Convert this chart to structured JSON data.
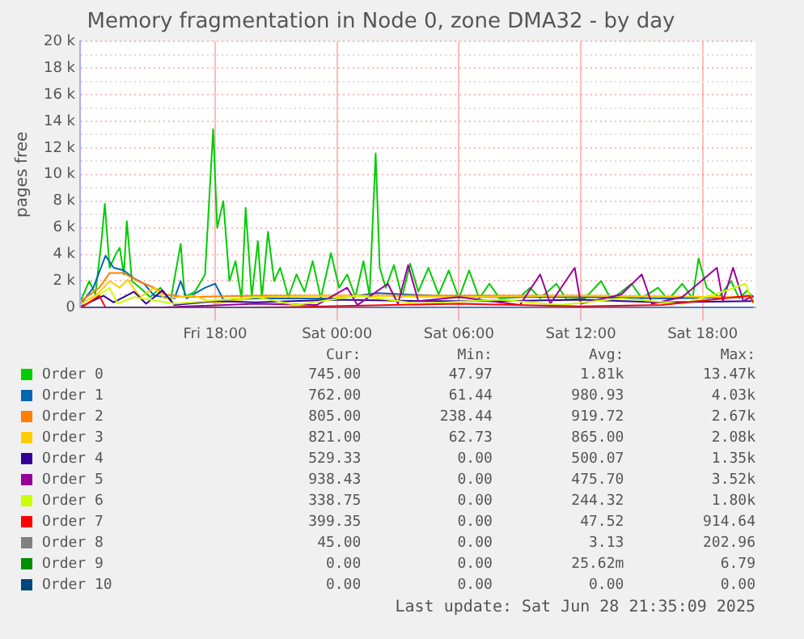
{
  "chart_data": {
    "type": "line",
    "title": "Memory fragmentation in Node 0, zone DMA32 - by day",
    "ylabel": "pages free",
    "xlim": [
      "2025-06-27T11:21",
      "2025-06-28T20:36"
    ],
    "xticks": [
      {
        "value": "2025-06-27T18:00",
        "label": "Fri 18:00"
      },
      {
        "value": "2025-06-28T00:00",
        "label": "Sat 00:00"
      },
      {
        "value": "2025-06-28T06:00",
        "label": "Sat 06:00"
      },
      {
        "value": "2025-06-28T12:00",
        "label": "Sat 12:00"
      },
      {
        "value": "2025-06-28T18:00",
        "label": "Sat 18:00"
      }
    ],
    "ylim": [
      0,
      20000
    ],
    "yticks": [
      {
        "value": 0,
        "label": "0"
      },
      {
        "value": 1000,
        "label": null
      },
      {
        "value": 2000,
        "label": "2 k"
      },
      {
        "value": 3000,
        "label": null
      },
      {
        "value": 4000,
        "label": "4 k"
      },
      {
        "value": 5000,
        "label": null
      },
      {
        "value": 6000,
        "label": "6 k"
      },
      {
        "value": 7000,
        "label": null
      },
      {
        "value": 8000,
        "label": "8 k"
      },
      {
        "value": 9000,
        "label": null
      },
      {
        "value": 10000,
        "label": "10 k"
      },
      {
        "value": 11000,
        "label": null
      },
      {
        "value": 12000,
        "label": "12 k"
      },
      {
        "value": 13000,
        "label": null
      },
      {
        "value": 14000,
        "label": "14 k"
      },
      {
        "value": 15000,
        "label": null
      },
      {
        "value": 16000,
        "label": "16 k"
      },
      {
        "value": 17000,
        "label": null
      },
      {
        "value": 18000,
        "label": "18 k"
      },
      {
        "value": 19000,
        "label": null
      },
      {
        "value": 20000,
        "label": "20 k"
      }
    ],
    "grid": true,
    "legend": "bottom",
    "series": [
      {
        "name": "Order 0",
        "color": "#00cc00",
        "x": [
          "2025-06-27T11:24",
          "2025-06-27T11:48",
          "2025-06-27T12:06",
          "2025-06-27T12:24",
          "2025-06-27T12:34",
          "2025-06-27T12:48",
          "2025-06-27T13:06",
          "2025-06-27T13:18",
          "2025-06-27T13:30",
          "2025-06-27T13:39",
          "2025-06-27T13:54",
          "2025-06-27T14:18",
          "2025-06-27T14:48",
          "2025-06-27T15:18",
          "2025-06-27T15:48",
          "2025-06-27T16:18",
          "2025-06-27T16:30",
          "2025-06-27T17:00",
          "2025-06-27T17:30",
          "2025-06-27T17:54",
          "2025-06-27T18:06",
          "2025-06-27T18:24",
          "2025-06-27T18:42",
          "2025-06-27T19:00",
          "2025-06-27T19:18",
          "2025-06-27T19:30",
          "2025-06-27T19:48",
          "2025-06-27T20:06",
          "2025-06-27T20:18",
          "2025-06-27T20:36",
          "2025-06-27T20:54",
          "2025-06-27T21:12",
          "2025-06-27T21:36",
          "2025-06-27T22:00",
          "2025-06-27T22:24",
          "2025-06-27T22:48",
          "2025-06-27T23:12",
          "2025-06-27T23:42",
          "2025-06-28T00:06",
          "2025-06-28T00:30",
          "2025-06-28T00:54",
          "2025-06-28T01:18",
          "2025-06-28T01:36",
          "2025-06-28T01:54",
          "2025-06-28T02:06",
          "2025-06-28T02:24",
          "2025-06-28T02:48",
          "2025-06-28T03:12",
          "2025-06-28T03:36",
          "2025-06-28T04:00",
          "2025-06-28T04:30",
          "2025-06-28T05:00",
          "2025-06-28T05:30",
          "2025-06-28T06:00",
          "2025-06-28T06:30",
          "2025-06-28T07:00",
          "2025-06-28T07:30",
          "2025-06-28T08:00",
          "2025-06-28T09:00",
          "2025-06-28T09:30",
          "2025-06-28T10:00",
          "2025-06-28T10:48",
          "2025-06-28T11:18",
          "2025-06-28T12:12",
          "2025-06-28T13:00",
          "2025-06-28T13:30",
          "2025-06-28T14:30",
          "2025-06-28T15:00",
          "2025-06-28T15:48",
          "2025-06-28T16:18",
          "2025-06-28T17:00",
          "2025-06-28T17:30",
          "2025-06-28T17:48",
          "2025-06-28T18:12",
          "2025-06-28T18:48",
          "2025-06-28T19:24",
          "2025-06-28T19:48",
          "2025-06-28T20:12",
          "2025-06-28T20:30"
        ],
        "values": [
          600,
          2000,
          1000,
          5000,
          7800,
          3000,
          4000,
          4500,
          2500,
          6500,
          2000,
          1500,
          800,
          1500,
          500,
          4800,
          800,
          1200,
          2500,
          13400,
          6000,
          8000,
          2000,
          3500,
          600,
          7500,
          800,
          5000,
          700,
          5700,
          2000,
          3000,
          800,
          2500,
          1200,
          3500,
          700,
          4100,
          1500,
          2500,
          800,
          3500,
          900,
          11600,
          3000,
          1500,
          3200,
          800,
          3300,
          1200,
          3000,
          1000,
          2800,
          700,
          2800,
          700,
          1800,
          700,
          800,
          1500,
          700,
          1800,
          600,
          700,
          2000,
          600,
          1800,
          700,
          1500,
          600,
          1800,
          700,
          3700,
          1500,
          800,
          2000,
          700,
          1300,
          700
        ]
      },
      {
        "name": "Order 1",
        "color": "#0066b3",
        "x": [
          "2025-06-27T11:24",
          "2025-06-27T12:00",
          "2025-06-27T12:36",
          "2025-06-27T13:00",
          "2025-06-27T13:30",
          "2025-06-27T14:00",
          "2025-06-27T14:30",
          "2025-06-27T15:00",
          "2025-06-27T16:00",
          "2025-06-27T16:18",
          "2025-06-27T16:36",
          "2025-06-27T17:30",
          "2025-06-27T18:00",
          "2025-06-27T18:24",
          "2025-06-27T20:00",
          "2025-06-28T00:00",
          "2025-06-28T02:00",
          "2025-06-28T06:00",
          "2025-06-28T12:00",
          "2025-06-28T16:00",
          "2025-06-28T20:30"
        ],
        "values": [
          300,
          1500,
          3900,
          3000,
          2800,
          2200,
          1800,
          900,
          700,
          2000,
          700,
          1500,
          1800,
          600,
          700,
          700,
          1100,
          800,
          800,
          700,
          800
        ]
      },
      {
        "name": "Order 2",
        "color": "#ff8000",
        "x": [
          "2025-06-27T11:24",
          "2025-06-27T12:18",
          "2025-06-27T12:48",
          "2025-06-27T13:30",
          "2025-06-27T14:12",
          "2025-06-27T15:00",
          "2025-06-27T15:30",
          "2025-06-27T16:30",
          "2025-06-27T20:00",
          "2025-06-28T04:00",
          "2025-06-28T12:00",
          "2025-06-28T18:00",
          "2025-06-28T20:30"
        ],
        "values": [
          500,
          1500,
          2600,
          2600,
          2000,
          1500,
          1000,
          800,
          900,
          900,
          900,
          800,
          800
        ]
      },
      {
        "name": "Order 3",
        "color": "#ffcc00",
        "x": [
          "2025-06-27T11:24",
          "2025-06-27T12:12",
          "2025-06-27T12:48",
          "2025-06-27T13:18",
          "2025-06-27T13:42",
          "2025-06-27T14:18",
          "2025-06-27T15:00",
          "2025-06-27T15:30",
          "2025-06-27T17:00",
          "2025-06-27T18:00",
          "2025-06-27T20:00",
          "2025-06-28T00:00",
          "2025-06-28T06:00",
          "2025-06-28T12:00",
          "2025-06-28T20:30"
        ],
        "values": [
          300,
          1000,
          2000,
          1500,
          2100,
          800,
          1500,
          700,
          900,
          300,
          800,
          900,
          800,
          900,
          800
        ]
      },
      {
        "name": "Order 4",
        "color": "#330099",
        "x": [
          "2025-06-27T11:24",
          "2025-06-27T12:30",
          "2025-06-27T13:00",
          "2025-06-27T14:00",
          "2025-06-27T14:36",
          "2025-06-27T15:24",
          "2025-06-27T16:00",
          "2025-06-27T18:00",
          "2025-06-27T20:00",
          "2025-06-28T00:00",
          "2025-06-28T04:00",
          "2025-06-28T08:00",
          "2025-06-28T12:00",
          "2025-06-28T16:00",
          "2025-06-28T20:30"
        ],
        "values": [
          100,
          900,
          400,
          1200,
          300,
          1300,
          200,
          500,
          400,
          600,
          500,
          500,
          600,
          400,
          500
        ]
      },
      {
        "name": "Order 5",
        "color": "#990099",
        "x": [
          "2025-06-27T11:24",
          "2025-06-27T15:00",
          "2025-06-27T20:00",
          "2025-06-27T23:00",
          "2025-06-28T00:30",
          "2025-06-28T01:00",
          "2025-06-28T02:30",
          "2025-06-28T03:00",
          "2025-06-28T03:30",
          "2025-06-28T04:00",
          "2025-06-28T06:00",
          "2025-06-28T09:00",
          "2025-06-28T10:00",
          "2025-06-28T10:30",
          "2025-06-28T11:42",
          "2025-06-28T12:00",
          "2025-06-28T14:00",
          "2025-06-28T15:00",
          "2025-06-28T15:30",
          "2025-06-28T17:00",
          "2025-06-28T18:42",
          "2025-06-28T19:00",
          "2025-06-28T19:30",
          "2025-06-28T20:00",
          "2025-06-28T20:30"
        ],
        "values": [
          0,
          0,
          300,
          200,
          1500,
          200,
          1800,
          300,
          3200,
          500,
          800,
          200,
          2500,
          300,
          3000,
          300,
          1000,
          2500,
          300,
          800,
          3000,
          500,
          3000,
          500,
          900
        ]
      },
      {
        "name": "Order 6",
        "color": "#ccff00",
        "x": [
          "2025-06-27T11:24",
          "2025-06-27T12:48",
          "2025-06-27T13:12",
          "2025-06-27T14:00",
          "2025-06-27T16:00",
          "2025-06-27T20:00",
          "2025-06-27T22:00",
          "2025-06-28T01:00",
          "2025-06-28T04:00",
          "2025-06-28T08:00",
          "2025-06-28T11:00",
          "2025-06-28T14:00",
          "2025-06-28T17:00",
          "2025-06-28T19:00",
          "2025-06-28T20:06",
          "2025-06-28T20:30"
        ],
        "values": [
          0,
          1500,
          300,
          800,
          300,
          800,
          200,
          900,
          300,
          600,
          200,
          700,
          300,
          1200,
          1800,
          300
        ]
      },
      {
        "name": "Order 7",
        "color": "#ff0000",
        "x": [
          "2025-06-27T11:24",
          "2025-06-27T12:18",
          "2025-06-27T12:36",
          "2025-06-27T20:00",
          "2025-06-28T06:00",
          "2025-06-28T12:00",
          "2025-06-28T16:00",
          "2025-06-28T20:18",
          "2025-06-28T20:30"
        ],
        "values": [
          0,
          900,
          0,
          0,
          300,
          100,
          200,
          900,
          400
        ]
      },
      {
        "name": "Order 8",
        "color": "#808080"
      },
      {
        "name": "Order 9",
        "color": "#008f00"
      },
      {
        "name": "Order 10",
        "color": "#00487d",
        "x": [
          "2025-06-27T11:24",
          "2025-06-28T20:30"
        ],
        "values": [
          0,
          0
        ]
      }
    ],
    "annotations": [
      "Cur:",
      "Min:",
      "Avg:",
      "Max:",
      "745.00",
      "47.97",
      "1.81k",
      "13.47k",
      "762.00",
      "61.44",
      "980.93",
      "4.03k",
      "805.00",
      "238.44",
      "919.72",
      "2.67k",
      "821.00",
      "62.73",
      "865.00",
      "2.08k",
      "529.33",
      "0.00",
      "500.07",
      "1.35k",
      "938.43",
      "0.00",
      "475.70",
      "3.52k",
      "338.75",
      "0.00",
      "244.32",
      "1.80k",
      "399.35",
      "0.00",
      "47.52",
      "914.64",
      "45.00",
      "0.00",
      "3.13",
      "202.96",
      "0.00",
      "0.00",
      "25.62m",
      "6.79",
      "0.00",
      "0.00",
      "0.00",
      "0.00",
      "Last update: Sat Jun 28 21:35:09 2025"
    ]
  }
}
